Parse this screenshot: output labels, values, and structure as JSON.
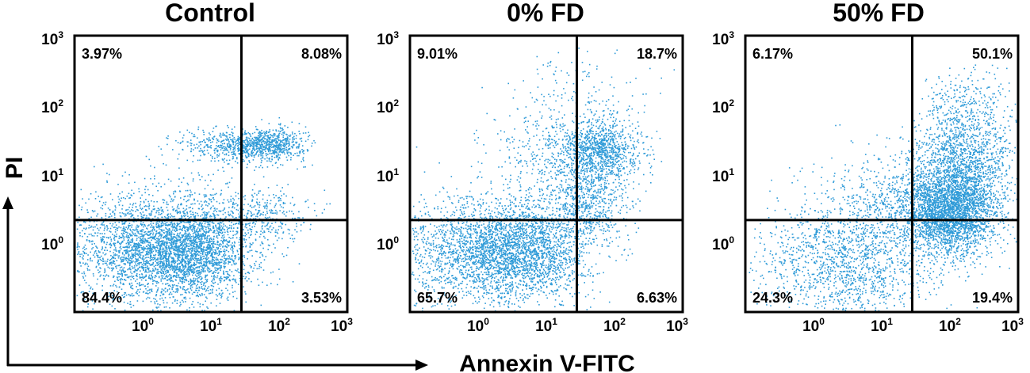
{
  "chart_data": [
    {
      "type": "scatter",
      "title": "Control",
      "xlabel": "Annexin V-FITC",
      "ylabel": "PI",
      "x_scale": "log",
      "y_scale": "log",
      "xlim": [
        0.1,
        1000
      ],
      "ylim": [
        0.1,
        1000
      ],
      "x_ticks": [
        {
          "base": "10",
          "exp": "0"
        },
        {
          "base": "10",
          "exp": "1"
        },
        {
          "base": "10",
          "exp": "2"
        },
        {
          "base": "10",
          "exp": "3"
        }
      ],
      "y_ticks": [
        {
          "base": "10",
          "exp": "0"
        },
        {
          "base": "10",
          "exp": "1"
        },
        {
          "base": "10",
          "exp": "2"
        },
        {
          "base": "10",
          "exp": "3"
        }
      ],
      "gate": {
        "x": 28,
        "y": 2.3
      },
      "quadrants": {
        "upper_left": "3.97%",
        "upper_right": "8.08%",
        "lower_left": "84.4%",
        "lower_right": "3.53%"
      },
      "clusters": [
        {
          "center": [
            4,
            0.8
          ],
          "spread": [
            0.5,
            0.35
          ],
          "count": 2600
        },
        {
          "center": [
            0.8,
            0.9
          ],
          "spread": [
            0.7,
            0.4
          ],
          "count": 1500
        },
        {
          "center": [
            60,
            30
          ],
          "spread": [
            0.3,
            0.12
          ],
          "count": 800
        },
        {
          "center": [
            12,
            30
          ],
          "spread": [
            0.3,
            0.12
          ],
          "count": 200
        },
        {
          "center": [
            50,
            3
          ],
          "spread": [
            0.35,
            0.18
          ],
          "count": 300
        },
        {
          "center": [
            8,
            3
          ],
          "spread": [
            0.6,
            0.6
          ],
          "count": 220
        }
      ]
    },
    {
      "type": "scatter",
      "title": "0% FD",
      "xlabel": "Annexin V-FITC",
      "ylabel": "PI",
      "x_scale": "log",
      "y_scale": "log",
      "xlim": [
        0.1,
        1000
      ],
      "ylim": [
        0.1,
        1000
      ],
      "x_ticks": [
        {
          "base": "10",
          "exp": "0"
        },
        {
          "base": "10",
          "exp": "1"
        },
        {
          "base": "10",
          "exp": "2"
        },
        {
          "base": "10",
          "exp": "3"
        }
      ],
      "y_ticks": [
        {
          "base": "10",
          "exp": "0"
        },
        {
          "base": "10",
          "exp": "1"
        },
        {
          "base": "10",
          "exp": "2"
        },
        {
          "base": "10",
          "exp": "3"
        }
      ],
      "gate": {
        "x": 28,
        "y": 2.3
      },
      "quadrants": {
        "upper_left": "9.01%",
        "upper_right": "18.7%",
        "lower_left": "65.7%",
        "lower_right": "6.63%"
      },
      "clusters": [
        {
          "center": [
            4,
            0.8
          ],
          "spread": [
            0.5,
            0.35
          ],
          "count": 2100
        },
        {
          "center": [
            0.8,
            0.8
          ],
          "spread": [
            0.7,
            0.4
          ],
          "count": 1400
        },
        {
          "center": [
            60,
            25
          ],
          "spread": [
            0.3,
            0.25
          ],
          "count": 1100
        },
        {
          "center": [
            40,
            4
          ],
          "spread": [
            0.3,
            0.3
          ],
          "count": 600
        },
        {
          "center": [
            10,
            15
          ],
          "spread": [
            0.45,
            0.45
          ],
          "count": 400
        },
        {
          "center": [
            30,
            200
          ],
          "spread": [
            0.5,
            0.35
          ],
          "count": 120
        }
      ]
    },
    {
      "type": "scatter",
      "title": "50% FD",
      "xlabel": "Annexin V-FITC",
      "ylabel": "PI",
      "x_scale": "log",
      "y_scale": "log",
      "xlim": [
        0.1,
        1000
      ],
      "ylim": [
        0.1,
        1000
      ],
      "x_ticks": [
        {
          "base": "10",
          "exp": "0"
        },
        {
          "base": "10",
          "exp": "1"
        },
        {
          "base": "10",
          "exp": "2"
        },
        {
          "base": "10",
          "exp": "3"
        }
      ],
      "y_ticks": [
        {
          "base": "10",
          "exp": "0"
        },
        {
          "base": "10",
          "exp": "1"
        },
        {
          "base": "10",
          "exp": "2"
        },
        {
          "base": "10",
          "exp": "3"
        }
      ],
      "gate": {
        "x": 28,
        "y": 2.3
      },
      "quadrants": {
        "upper_left": "6.17%",
        "upper_right": "50.1%",
        "lower_left": "24.3%",
        "lower_right": "19.4%"
      },
      "clusters": [
        {
          "center": [
            100,
            3
          ],
          "spread": [
            0.35,
            0.3
          ],
          "count": 2800
        },
        {
          "center": [
            150,
            15
          ],
          "spread": [
            0.35,
            0.35
          ],
          "count": 1200
        },
        {
          "center": [
            3,
            0.6
          ],
          "spread": [
            0.7,
            0.45
          ],
          "count": 1600
        },
        {
          "center": [
            15,
            5
          ],
          "spread": [
            0.5,
            0.4
          ],
          "count": 500
        },
        {
          "center": [
            200,
            80
          ],
          "spread": [
            0.35,
            0.35
          ],
          "count": 400
        }
      ]
    }
  ]
}
